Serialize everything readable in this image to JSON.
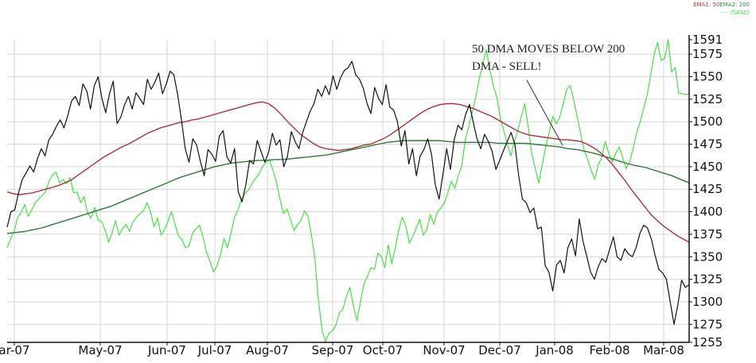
{
  "legend": {
    "ema1": "EMA1: 50",
    "ema2": "EMA2: 200",
    "sasc": "---- (SASC)"
  },
  "annotation": {
    "line1": "50 DMA MOVES BELOW 200",
    "line2": "DMA - SELL!"
  },
  "colors": {
    "price": "#111111",
    "ema50": "#b0303a",
    "ema200": "#2f7a35",
    "sasc": "#46e046",
    "grid": "#d6d6d6",
    "axis": "#111111"
  },
  "chart_data": {
    "type": "line",
    "title": "",
    "ylim": [
      1255,
      1591
    ],
    "grid": true,
    "legend_position": "top-right",
    "y_ticks": [
      1255,
      1275,
      1300,
      1325,
      1350,
      1375,
      1400,
      1425,
      1450,
      1475,
      1500,
      1525,
      1550,
      1575,
      1591
    ],
    "x_ticks": [
      "ar-07",
      "May-07",
      "Jun-07",
      "Jul-07",
      "Aug-07",
      "Sep-07",
      "Oct-07",
      "Nov-07",
      "Dec-07",
      "Jan-08",
      "Feb-08",
      "Mar-08"
    ],
    "series": [
      {
        "name": "",
        "key": "price",
        "values": [
          1383,
          1400,
          1402,
          1421,
          1436,
          1443,
          1451,
          1444,
          1459,
          1470,
          1462,
          1480,
          1486,
          1495,
          1502,
          1493,
          1507,
          1523,
          1528,
          1518,
          1542,
          1534,
          1514,
          1540,
          1550,
          1526,
          1510,
          1531,
          1545,
          1498,
          1505,
          1519,
          1528,
          1514,
          1532,
          1526,
          1519,
          1547,
          1536,
          1544,
          1554,
          1531,
          1542,
          1556,
          1552,
          1530,
          1502,
          1470,
          1455,
          1481,
          1474,
          1456,
          1440,
          1469,
          1464,
          1456,
          1484,
          1490,
          1461,
          1454,
          1470,
          1422,
          1411,
          1430,
          1457,
          1453,
          1479,
          1467,
          1455,
          1466,
          1487,
          1474,
          1480,
          1450,
          1462,
          1489,
          1478,
          1470,
          1488,
          1500,
          1512,
          1520,
          1536,
          1528,
          1540,
          1530,
          1551,
          1536,
          1549,
          1557,
          1560,
          1567,
          1552,
          1547,
          1537,
          1520,
          1509,
          1538,
          1526,
          1519,
          1541,
          1516,
          1513,
          1500,
          1473,
          1490,
          1453,
          1470,
          1440,
          1462,
          1469,
          1481,
          1464,
          1430,
          1414,
          1441,
          1470,
          1447,
          1480,
          1496,
          1491,
          1508,
          1519,
          1500,
          1481,
          1470,
          1486,
          1478,
          1467,
          1447,
          1457,
          1468,
          1478,
          1488,
          1475,
          1440,
          1414,
          1410,
          1399,
          1404,
          1381,
          1383,
          1340,
          1333,
          1312,
          1341,
          1346,
          1332,
          1360,
          1370,
          1351,
          1392,
          1367,
          1350,
          1333,
          1325,
          1339,
          1348,
          1344,
          1358,
          1372,
          1350,
          1346,
          1359,
          1353,
          1350,
          1360,
          1376,
          1385,
          1382,
          1370,
          1352,
          1336,
          1332,
          1325,
          1300,
          1275,
          1296,
          1324,
          1316,
          1319
        ]
      },
      {
        "name": "EMA1: 50",
        "key": "ema50",
        "values": [
          1422,
          1420,
          1419,
          1420,
          1421,
          1423,
          1425,
          1427,
          1429,
          1432,
          1435,
          1440,
          1445,
          1450,
          1455,
          1460,
          1464,
          1468,
          1472,
          1475,
          1479,
          1483,
          1487,
          1490,
          1493,
          1495,
          1497,
          1499,
          1500,
          1502,
          1503,
          1505,
          1507,
          1509,
          1511,
          1513,
          1515,
          1517,
          1519,
          1521,
          1522,
          1520,
          1515,
          1508,
          1500,
          1493,
          1486,
          1481,
          1476,
          1472,
          1470,
          1469,
          1468,
          1469,
          1470,
          1472,
          1474,
          1475,
          1478,
          1481,
          1485,
          1490,
          1495,
          1500,
          1505,
          1510,
          1514,
          1517,
          1519,
          1520,
          1520,
          1519,
          1517,
          1515,
          1512,
          1509,
          1506,
          1502,
          1498,
          1494,
          1490,
          1487,
          1485,
          1484,
          1483,
          1482,
          1481,
          1480,
          1480,
          1479,
          1478,
          1475,
          1471,
          1466,
          1460,
          1452,
          1443,
          1434,
          1424,
          1415,
          1406,
          1397,
          1390,
          1384,
          1379,
          1374,
          1370,
          1366
        ]
      },
      {
        "name": "EMA2: 200",
        "key": "ema200",
        "values": [
          1376,
          1377,
          1378,
          1380,
          1382,
          1385,
          1388,
          1391,
          1394,
          1397,
          1400,
          1403,
          1406,
          1410,
          1414,
          1418,
          1422,
          1426,
          1430,
          1434,
          1438,
          1441,
          1444,
          1447,
          1450,
          1452,
          1454,
          1455,
          1456,
          1457,
          1457,
          1458,
          1458,
          1459,
          1460,
          1461,
          1462,
          1463,
          1465,
          1467,
          1469,
          1471,
          1473,
          1475,
          1477,
          1478,
          1479,
          1479,
          1479,
          1479,
          1479,
          1478,
          1477,
          1477,
          1477,
          1477,
          1477,
          1476,
          1476,
          1476,
          1476,
          1475,
          1474,
          1473,
          1472,
          1470,
          1469,
          1467,
          1465,
          1462,
          1459,
          1456,
          1453,
          1451,
          1449,
          1446,
          1443,
          1440,
          1436,
          1432
        ]
      },
      {
        "name": "(SASC)",
        "key": "sasc",
        "values": [
          1360,
          1370,
          1378,
          1394,
          1399,
          1408,
          1395,
          1402,
          1410,
          1414,
          1418,
          1422,
          1434,
          1441,
          1444,
          1432,
          1436,
          1431,
          1438,
          1421,
          1422,
          1410,
          1417,
          1398,
          1393,
          1405,
          1391,
          1389,
          1380,
          1366,
          1376,
          1390,
          1374,
          1381,
          1386,
          1378,
          1389,
          1394,
          1398,
          1401,
          1410,
          1400,
          1383,
          1393,
          1374,
          1380,
          1390,
          1400,
          1386,
          1373,
          1369,
          1360,
          1362,
          1376,
          1381,
          1385,
          1372,
          1355,
          1345,
          1333,
          1340,
          1352,
          1370,
          1360,
          1376,
          1394,
          1402,
          1414,
          1420,
          1424,
          1431,
          1437,
          1442,
          1450,
          1455,
          1458,
          1446,
          1433,
          1414,
          1398,
          1403,
          1392,
          1379,
          1386,
          1390,
          1401,
          1395,
          1374,
          1348,
          1302,
          1270,
          1256,
          1265,
          1268,
          1274,
          1288,
          1292,
          1306,
          1316,
          1296,
          1279,
          1300,
          1320,
          1328,
          1338,
          1336,
          1354,
          1350,
          1338,
          1363,
          1342,
          1360,
          1380,
          1394,
          1384,
          1365,
          1373,
          1382,
          1392,
          1374,
          1380,
          1397,
          1386,
          1400,
          1404,
          1410,
          1421,
          1434,
          1426,
          1440,
          1451,
          1480,
          1495,
          1511,
          1527,
          1548,
          1564,
          1580,
          1558,
          1540,
          1527,
          1504,
          1490,
          1475,
          1462,
          1478,
          1490,
          1505,
          1520,
          1494,
          1465,
          1448,
          1432,
          1452,
          1472,
          1488,
          1506,
          1498,
          1505,
          1520,
          1536,
          1540,
          1524,
          1505,
          1486,
          1468,
          1458,
          1446,
          1436,
          1452,
          1460,
          1478,
          1465,
          1455,
          1465,
          1472,
          1460,
          1448,
          1456,
          1470,
          1488,
          1500,
          1515,
          1530,
          1552,
          1575,
          1588,
          1568,
          1570,
          1591,
          1555,
          1560,
          1532,
          1531,
          1530,
          1531
        ]
      }
    ]
  }
}
